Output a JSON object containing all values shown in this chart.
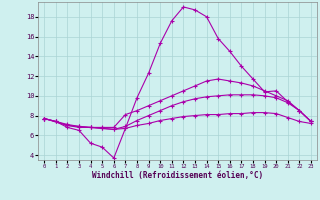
{
  "xlabel": "Windchill (Refroidissement éolien,°C)",
  "background_color": "#cff0ef",
  "grid_color": "#aad4d4",
  "line_color": "#aa00aa",
  "xlim": [
    -0.5,
    23.5
  ],
  "ylim": [
    3.5,
    19.5
  ],
  "xticks": [
    0,
    1,
    2,
    3,
    4,
    5,
    6,
    7,
    8,
    9,
    10,
    11,
    12,
    13,
    14,
    15,
    16,
    17,
    18,
    19,
    20,
    21,
    22,
    23
  ],
  "yticks": [
    4,
    6,
    8,
    10,
    12,
    14,
    16,
    18
  ],
  "line1_x": [
    0,
    1,
    2,
    3,
    4,
    5,
    6,
    7,
    8,
    9,
    10,
    11,
    12,
    13,
    14,
    15,
    16,
    17,
    18,
    19,
    20,
    21,
    22,
    23
  ],
  "line1_y": [
    7.7,
    7.4,
    6.8,
    6.5,
    5.2,
    4.8,
    3.7,
    6.7,
    9.8,
    12.3,
    15.3,
    17.6,
    19.0,
    18.7,
    18.0,
    15.8,
    14.5,
    13.0,
    11.7,
    10.4,
    10.5,
    9.4,
    8.5,
    7.4
  ],
  "line2_x": [
    0,
    2,
    3,
    4,
    5,
    6,
    7,
    8,
    9,
    10,
    11,
    12,
    13,
    14,
    15,
    16,
    17,
    18,
    19,
    20,
    21,
    22,
    23
  ],
  "line2_y": [
    7.7,
    7.0,
    6.8,
    6.8,
    6.8,
    6.8,
    8.1,
    8.5,
    9.0,
    9.5,
    10.0,
    10.5,
    11.0,
    11.5,
    11.7,
    11.5,
    11.3,
    11.0,
    10.5,
    10.0,
    9.5,
    8.5,
    7.4
  ],
  "line3_x": [
    0,
    1,
    2,
    3,
    4,
    5,
    6,
    7,
    8,
    9,
    10,
    11,
    12,
    13,
    14,
    15,
    16,
    17,
    18,
    19,
    20,
    21,
    22,
    23
  ],
  "line3_y": [
    7.7,
    7.4,
    7.1,
    6.9,
    6.8,
    6.7,
    6.6,
    6.9,
    7.5,
    8.0,
    8.5,
    9.0,
    9.4,
    9.7,
    9.9,
    10.0,
    10.1,
    10.1,
    10.1,
    10.0,
    9.8,
    9.3,
    8.5,
    7.4
  ],
  "line4_x": [
    0,
    1,
    2,
    3,
    4,
    5,
    6,
    7,
    8,
    9,
    10,
    11,
    12,
    13,
    14,
    15,
    16,
    17,
    18,
    19,
    20,
    21,
    22,
    23
  ],
  "line4_y": [
    7.7,
    7.4,
    7.0,
    6.9,
    6.8,
    6.7,
    6.6,
    6.7,
    7.0,
    7.2,
    7.5,
    7.7,
    7.9,
    8.0,
    8.1,
    8.1,
    8.2,
    8.2,
    8.3,
    8.3,
    8.2,
    7.8,
    7.4,
    7.2
  ]
}
